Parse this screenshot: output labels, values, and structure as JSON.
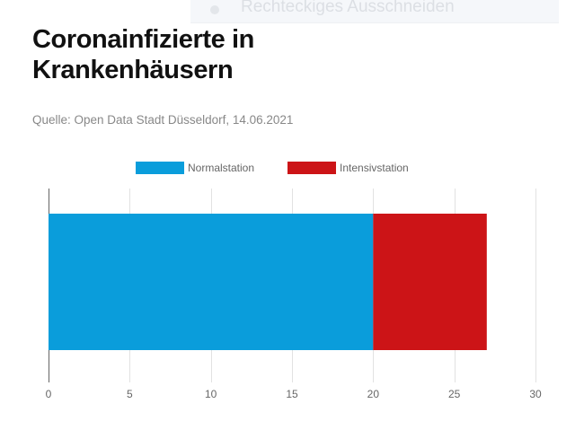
{
  "overlay": {
    "label": "Rechteckiges Ausschneiden"
  },
  "header": {
    "title": "Coronainfizierte in Krankenhäusern",
    "source": "Quelle: Open Data Stadt Düsseldorf, 14.06.2021"
  },
  "chart_data": {
    "type": "bar",
    "orientation": "horizontal",
    "stacked": true,
    "categories": [
      ""
    ],
    "series": [
      {
        "name": "Normalstation",
        "values": [
          20
        ],
        "color": "#0a9ddb"
      },
      {
        "name": "Intensivstation",
        "values": [
          7
        ],
        "color": "#cc1417"
      }
    ],
    "xlim": [
      0,
      30
    ],
    "x_ticks": [
      0,
      5,
      10,
      15,
      20,
      25,
      30
    ],
    "grid": true,
    "legend_position": "top"
  }
}
